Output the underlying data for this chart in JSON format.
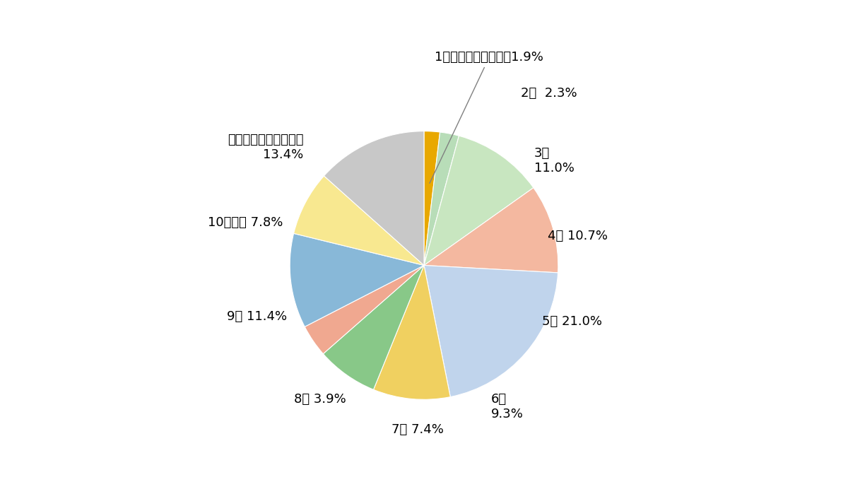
{
  "values": [
    1.9,
    2.3,
    11.0,
    10.7,
    21.0,
    9.3,
    7.4,
    3.9,
    11.4,
    7.8,
    13.4
  ],
  "colors": [
    "#E8A800",
    "#B8DDB8",
    "#C8E6C0",
    "#F4B8A0",
    "#C0D4EC",
    "#F0D060",
    "#88C888",
    "#F0A890",
    "#88B8D8",
    "#F8E890",
    "#C8C8C8"
  ],
  "background_color": "#FFFFFF",
  "font_size": 13,
  "font_size_small": 11
}
